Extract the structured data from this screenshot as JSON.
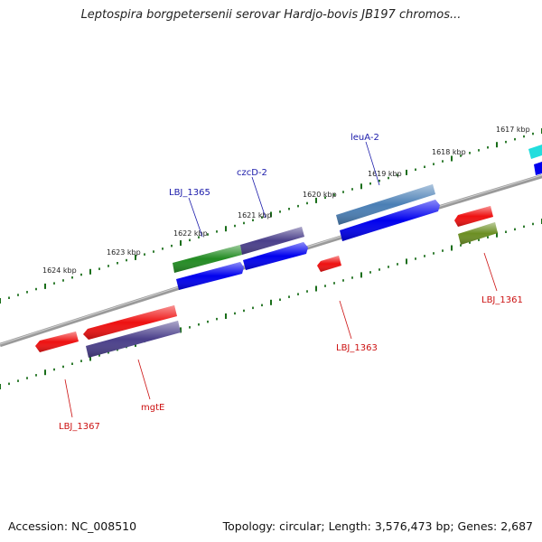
{
  "title": "Leptospira borgpetersenii serovar Hardjo-bovis JB197 chromos...",
  "footer": {
    "accession": "Accession: NC_008510",
    "topology": "Topology: circular; Length: 3,576,473 bp; Genes: 2,687"
  },
  "ruler_labels": [
    "1624 kbp",
    "1623 kbp",
    "1622 kbp",
    "1621 kbp",
    "1620 kbp",
    "1619 kbp",
    "1618 kbp",
    "1617 kbp"
  ],
  "genes": {
    "forward": [
      {
        "name": "LBJ_1365",
        "color": "#1a1aaa"
      },
      {
        "name": "czcD-2",
        "color": "#1a1aaa"
      },
      {
        "name": "leuA-2",
        "color": "#1a1aaa"
      }
    ],
    "reverse": [
      {
        "name": "LBJ_1367",
        "color": "#cc1111"
      },
      {
        "name": "mgtE",
        "color": "#cc1111"
      },
      {
        "name": "LBJ_1363",
        "color": "#cc1111"
      },
      {
        "name": "LBJ_1361",
        "color": "#cc1111"
      }
    ]
  },
  "colors": {
    "backbone": "#808080",
    "tick": "#1a6e1a",
    "blue": "#0000ee",
    "red": "#ee1111",
    "green": "#228b22",
    "slate": "#4a3f8a",
    "steel": "#4a7fb5",
    "olive": "#6b8e23",
    "cyan": "#22dddd"
  }
}
